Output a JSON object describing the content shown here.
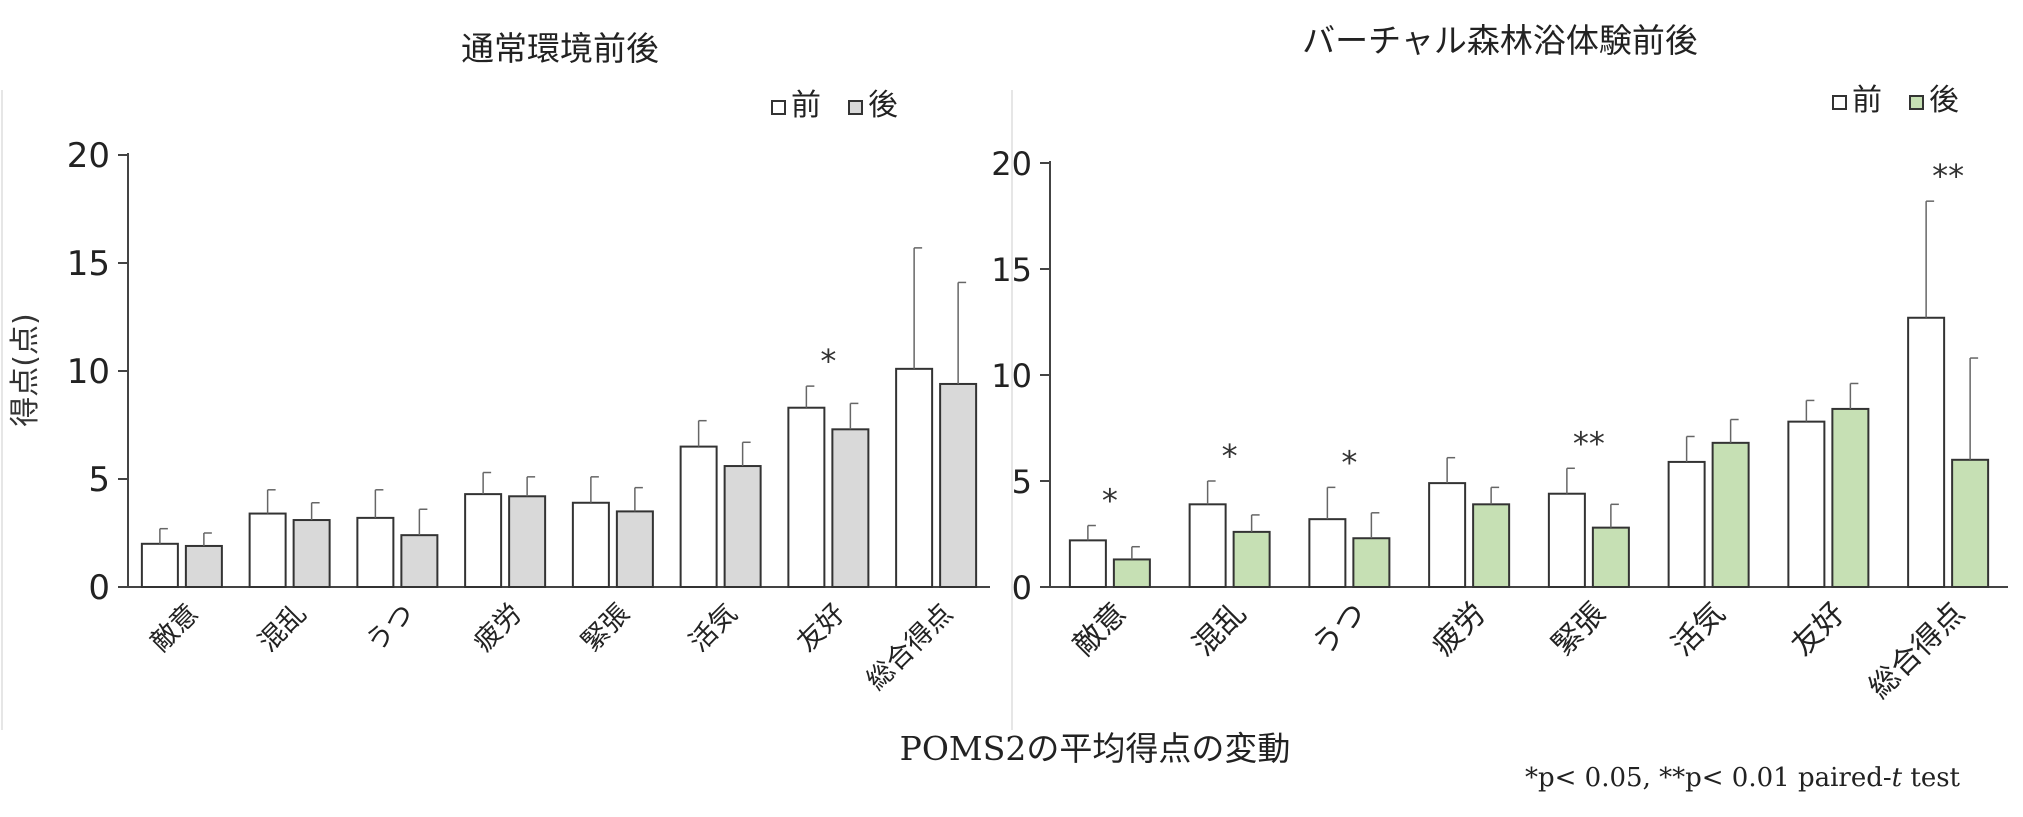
{
  "page": {
    "caption": "POMS2の平均得点の変動",
    "footnote": "*p< 0.05, **p< 0.01 paired-",
    "footnote_t": "t",
    "footnote_tail": " test"
  },
  "chart_data": [
    {
      "type": "bar",
      "title": "通常環境前後",
      "ylabel": "得点(点)",
      "ylim": [
        0,
        20
      ],
      "yticks": [
        0,
        5,
        10,
        15,
        20
      ],
      "categories": [
        "敵意",
        "混乱",
        "うつ",
        "疲労",
        "緊張",
        "活気",
        "友好",
        "総合得点"
      ],
      "legend": {
        "position": "top-right"
      },
      "series": [
        {
          "name": "前",
          "color": "#ffffff",
          "values": [
            2.0,
            3.4,
            3.2,
            4.3,
            3.9,
            6.5,
            8.3,
            10.1
          ],
          "errors": [
            0.7,
            1.1,
            1.3,
            1.0,
            1.2,
            1.2,
            1.0,
            5.6
          ]
        },
        {
          "name": "後",
          "color": "#d9d9d9",
          "values": [
            1.9,
            3.1,
            2.4,
            4.2,
            3.5,
            5.6,
            7.3,
            9.4
          ],
          "errors": [
            0.6,
            0.8,
            1.2,
            0.9,
            1.1,
            1.1,
            1.2,
            4.7
          ]
        }
      ],
      "annotations": [
        {
          "category_index": 6,
          "text": "*"
        }
      ]
    },
    {
      "type": "bar",
      "title": "バーチャル森林浴体験前後",
      "ylabel": "",
      "ylim": [
        0,
        20
      ],
      "yticks": [
        0,
        5,
        10,
        15,
        20
      ],
      "categories": [
        "敵意",
        "混乱",
        "うつ",
        "疲労",
        "緊張",
        "活気",
        "友好",
        "総合得点"
      ],
      "legend": {
        "position": "top-right"
      },
      "series": [
        {
          "name": "前",
          "color": "#ffffff",
          "values": [
            2.2,
            3.9,
            3.2,
            4.9,
            4.4,
            5.9,
            7.8,
            12.7
          ],
          "errors": [
            0.7,
            1.1,
            1.5,
            1.2,
            1.2,
            1.2,
            1.0,
            5.5
          ]
        },
        {
          "name": "後",
          "color": "#c6e0b4",
          "values": [
            1.3,
            2.6,
            2.3,
            3.9,
            2.8,
            6.8,
            8.4,
            6.0
          ],
          "errors": [
            0.6,
            0.8,
            1.2,
            0.8,
            1.1,
            1.1,
            1.2,
            4.8
          ]
        }
      ],
      "annotations": [
        {
          "category_index": 0,
          "text": "*"
        },
        {
          "category_index": 1,
          "text": "*"
        },
        {
          "category_index": 2,
          "text": "*"
        },
        {
          "category_index": 4,
          "text": "**"
        },
        {
          "category_index": 7,
          "text": "**"
        }
      ]
    }
  ]
}
